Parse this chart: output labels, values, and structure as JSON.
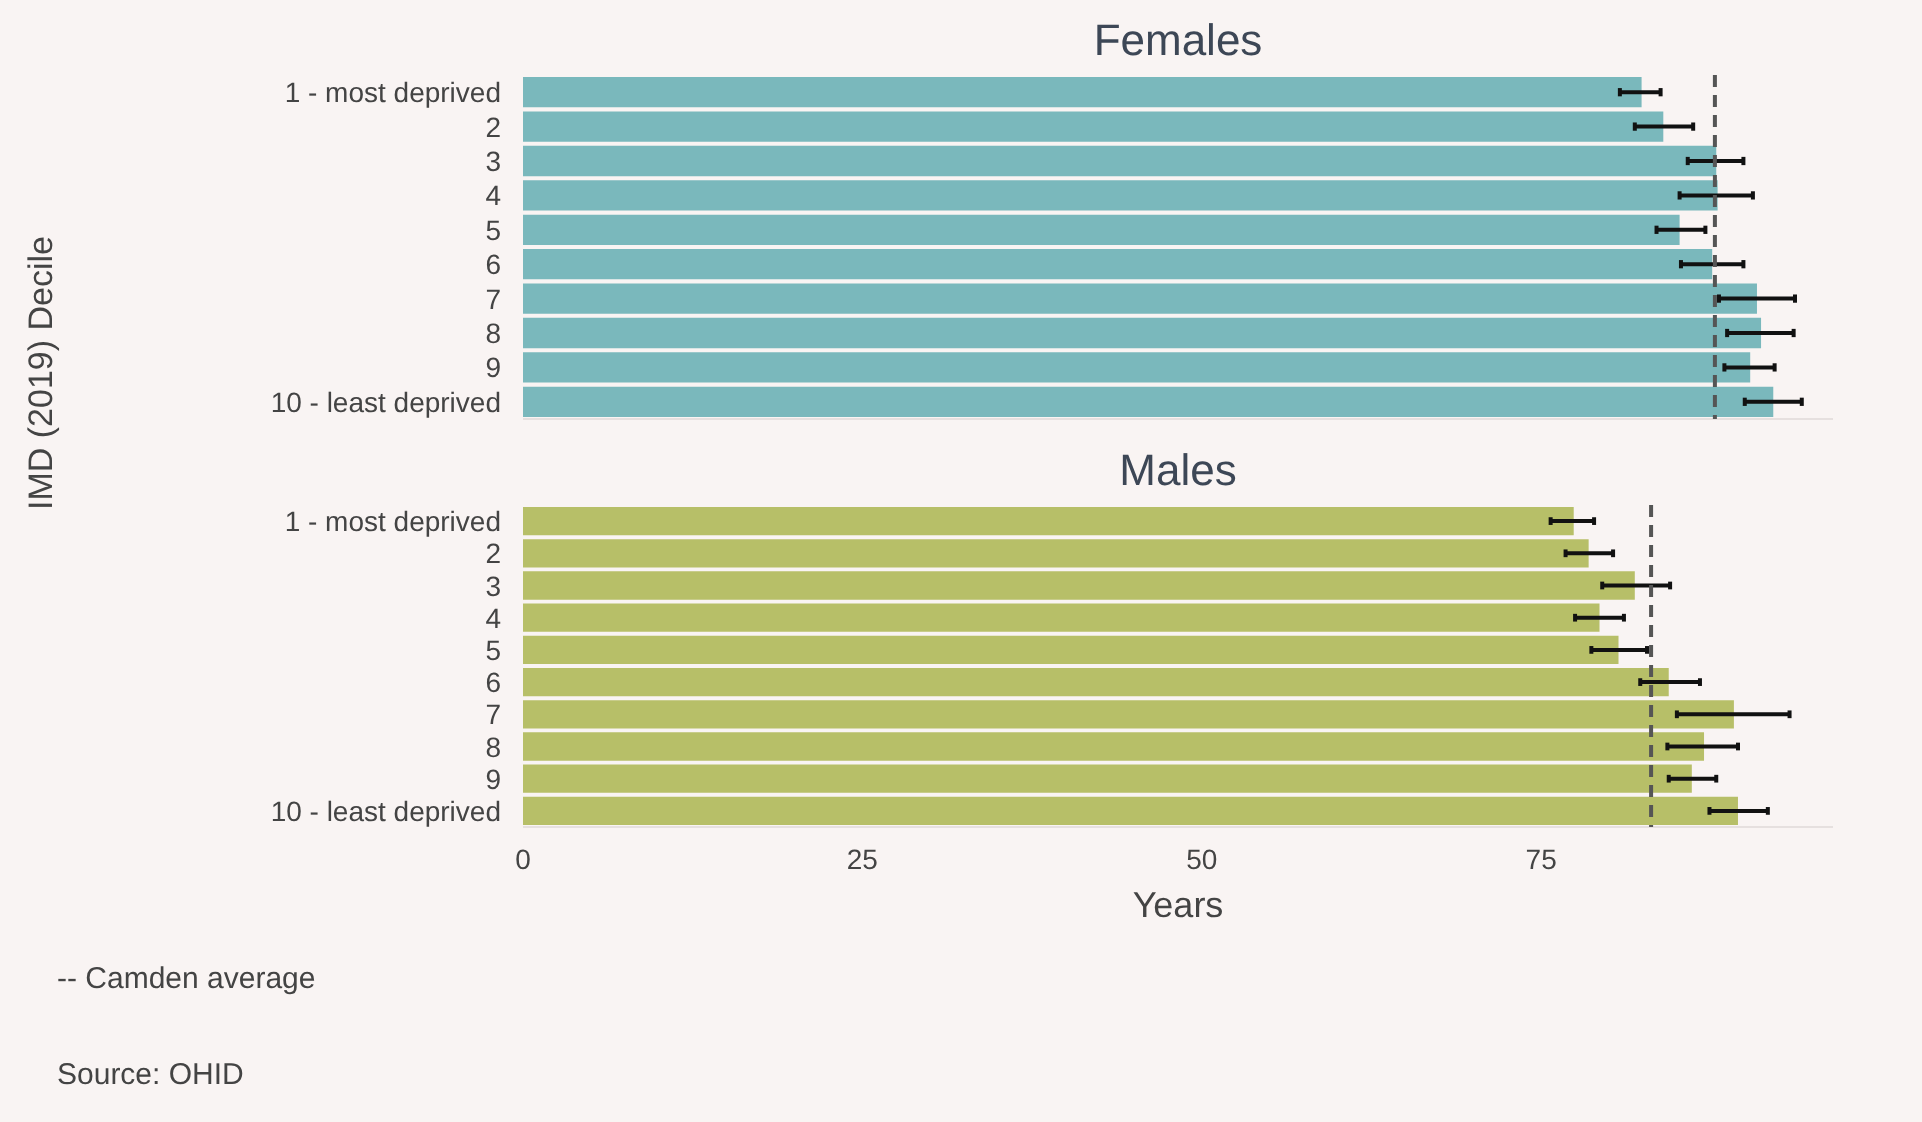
{
  "chart_data": [
    {
      "type": "bar",
      "orientation": "horizontal",
      "title": "Females",
      "ylabel": "IMD (2019) Decile",
      "categories": [
        "1 - most deprived",
        "2",
        "3",
        "4",
        "5",
        "6",
        "7",
        "8",
        "9",
        "10 - least deprived"
      ],
      "values": [
        82.4,
        84.0,
        87.9,
        88.0,
        85.2,
        87.6,
        90.9,
        91.2,
        90.4,
        92.1
      ],
      "errors": [
        [
          80.8,
          83.8
        ],
        [
          81.9,
          86.2
        ],
        [
          85.8,
          89.9
        ],
        [
          85.2,
          90.6
        ],
        [
          83.5,
          87.1
        ],
        [
          85.3,
          89.9
        ],
        [
          88.1,
          93.7
        ],
        [
          88.7,
          93.6
        ],
        [
          88.5,
          92.2
        ],
        [
          90.0,
          94.2
        ]
      ],
      "color": "#7ab8bc",
      "xlim": [
        0,
        96.5
      ],
      "xticks": [
        0,
        25,
        50,
        75
      ],
      "tick_labels": "y",
      "ref_lines": [
        {
          "axis": "x",
          "value": 87.8,
          "line_style": "dashed",
          "color": "#555555"
        }
      ]
    },
    {
      "type": "bar",
      "orientation": "horizontal",
      "title": "Males",
      "xlabel": "Years",
      "categories": [
        "1 - most deprived",
        "2",
        "3",
        "4",
        "5",
        "6",
        "7",
        "8",
        "9",
        "10 - least deprived"
      ],
      "values": [
        77.4,
        78.5,
        81.9,
        79.3,
        80.7,
        84.4,
        89.2,
        87.0,
        86.1,
        89.5
      ],
      "errors": [
        [
          75.7,
          78.9
        ],
        [
          76.8,
          80.3
        ],
        [
          79.5,
          84.5
        ],
        [
          77.5,
          81.1
        ],
        [
          78.7,
          82.8
        ],
        [
          82.3,
          86.7
        ],
        [
          85.0,
          93.3
        ],
        [
          84.3,
          89.5
        ],
        [
          84.4,
          87.9
        ],
        [
          87.4,
          91.7
        ]
      ],
      "color": "#b7bf68",
      "xlim": [
        0,
        96.5
      ],
      "xticks": [
        0,
        25,
        50,
        75
      ],
      "ref_lines": [
        {
          "axis": "x",
          "value": 83.1,
          "line_style": "dashed",
          "color": "#555555"
        }
      ],
      "annotations": [
        "-- Camden average",
        "Source: OHID"
      ]
    }
  ]
}
